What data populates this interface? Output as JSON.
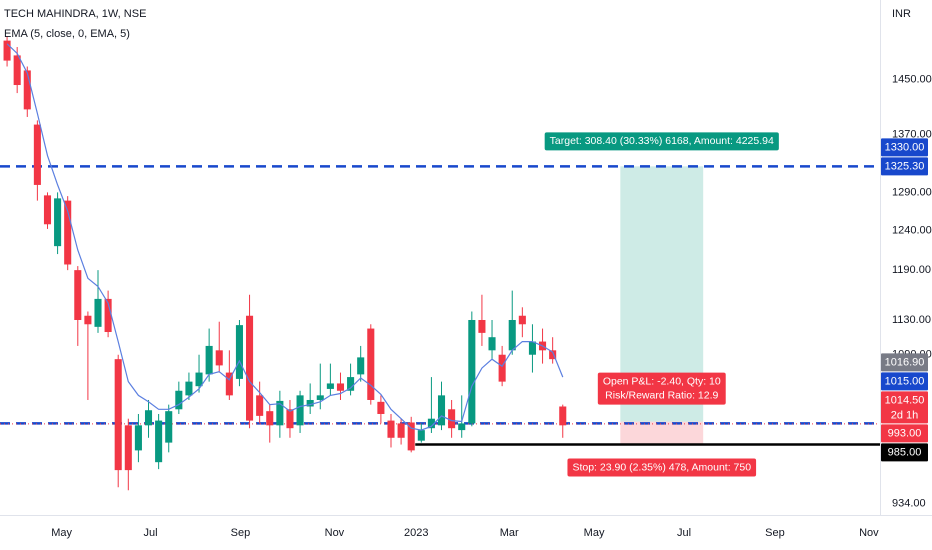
{
  "chart_data": {
    "type": "candlestick",
    "title": "TECH MAHINDRA, 1W, NSE",
    "currency": "INR",
    "log_scale": true,
    "up_color": "#089981",
    "down_color": "#f23645",
    "xlim": [
      -0.7,
      86.4
    ],
    "ylim": [
      923,
      1575
    ],
    "xticks": [
      {
        "value": 5.4,
        "label": "May"
      },
      {
        "value": 14.2,
        "label": "Jul"
      },
      {
        "value": 23.1,
        "label": "Sep"
      },
      {
        "value": 32.4,
        "label": "Nov"
      },
      {
        "value": 40.5,
        "label": "2023"
      },
      {
        "value": 49.7,
        "label": "Mar"
      },
      {
        "value": 58.1,
        "label": "May"
      },
      {
        "value": 67,
        "label": "Jul"
      },
      {
        "value": 76,
        "label": "Sep"
      },
      {
        "value": 85.3,
        "label": "Nov"
      }
    ],
    "yticks": [
      {
        "value": 1450,
        "label": "1450.00"
      },
      {
        "value": 1370,
        "label": "1370.00"
      },
      {
        "value": 1290,
        "label": "1290.00"
      },
      {
        "value": 1240,
        "label": "1240.00"
      },
      {
        "value": 1190,
        "label": "1190.00"
      },
      {
        "value": 1130,
        "label": "1130.00"
      },
      {
        "value": 1090,
        "label": "1090.00"
      },
      {
        "value": 934,
        "label": "934.00"
      }
    ],
    "open": [
      1510,
      1487,
      1464,
      1384,
      1286,
      1220,
      1279,
      1190,
      1135,
      1122,
      1155,
      1085,
      1013,
      987,
      1013,
      975,
      995,
      1030,
      1045,
      1055,
      1068,
      1095,
      1070,
      1063,
      1135,
      1045,
      1028,
      1013,
      1030,
      1013,
      1033,
      1040,
      1052,
      1058,
      1050,
      1068,
      1120,
      1038,
      1018,
      1015,
      1016,
      997,
      1010,
      1013,
      1030,
      1008,
      1015,
      1130,
      1095,
      1090,
      1095,
      1135,
      1090,
      1105,
      1095,
      1033
    ],
    "high": [
      1517,
      1500,
      1470,
      1390,
      1290,
      1290,
      1285,
      1195,
      1140,
      1190,
      1165,
      1090,
      1020,
      1025,
      1040,
      1025,
      1035,
      1060,
      1070,
      1090,
      1120,
      1128,
      1095,
      1130,
      1160,
      1060,
      1035,
      1050,
      1040,
      1050,
      1058,
      1080,
      1080,
      1070,
      1080,
      1100,
      1125,
      1045,
      1025,
      1020,
      1022,
      1015,
      1065,
      1060,
      1040,
      1045,
      1140,
      1160,
      1130,
      1100,
      1165,
      1145,
      1125,
      1120,
      1110,
      1035
    ],
    "low": [
      1470,
      1430,
      1395,
      1279,
      1242,
      1210,
      1190,
      1100,
      1040,
      1115,
      1110,
      950,
      947,
      975,
      1000,
      968,
      985,
      1025,
      1040,
      1048,
      1060,
      1070,
      1040,
      1055,
      1010,
      1015,
      995,
      1000,
      1000,
      1005,
      1025,
      1030,
      1045,
      1040,
      1045,
      1060,
      1035,
      1015,
      990,
      993,
      985,
      995,
      1005,
      1008,
      1000,
      1000,
      1012,
      1100,
      1085,
      1055,
      1090,
      1110,
      1070,
      1080,
      1080,
      1000
    ],
    "close": [
      1479,
      1442,
      1406,
      1300,
      1248,
      1282,
      1197,
      1130,
      1125,
      1155,
      1116,
      967,
      967,
      1013,
      1029,
      1018,
      1028,
      1050,
      1060,
      1070,
      1100,
      1078,
      1045,
      1124,
      1018,
      1023,
      1013,
      1039,
      1010,
      1045,
      1040,
      1045,
      1058,
      1050,
      1065,
      1087,
      1040,
      1025,
      1000,
      1000,
      987,
      1008,
      1020,
      1045,
      1010,
      1015,
      1130,
      1115,
      1110,
      1060,
      1130,
      1125,
      1105,
      1095,
      1085,
      1013
    ],
    "series": [
      {
        "name": "EMA (5, close, 0, EMA, 5)",
        "color": "#5b7fe0",
        "values": [
          1505,
          1490,
          1460,
          1400,
          1340,
          1300,
          1265,
          1215,
          1180,
          1170,
          1150,
          1105,
          1060,
          1045,
          1038,
          1030,
          1030,
          1035,
          1043,
          1052,
          1068,
          1071,
          1062,
          1083,
          1060,
          1048,
          1035,
          1036,
          1028,
          1033,
          1035,
          1038,
          1045,
          1047,
          1053,
          1064,
          1056,
          1046,
          1030,
          1020,
          1010,
          1008,
          1012,
          1023,
          1018,
          1017,
          1055,
          1075,
          1085,
          1077,
          1095,
          1105,
          1105,
          1100,
          1093,
          1065
        ]
      }
    ],
    "lines": [
      {
        "value": 1325.3,
        "color": "#1848cc",
        "style": "dashed"
      },
      {
        "value": 1015,
        "color": "#1848cc",
        "style": "dashed"
      },
      {
        "value": 1014.5,
        "color": "#f23645",
        "style": "dotted"
      },
      {
        "value": 993,
        "color": "#000000",
        "style": "solid",
        "x_start": 40.4
      }
    ],
    "position": {
      "entry": 1016.9,
      "target": 1325.3,
      "stop": 993,
      "x_range": [
        60.7,
        68.9
      ],
      "target_label": "Target: 308.40 (30.33%) 6168, Amount: 4225.94",
      "pnl_label": "Open P&L: -2.40, Qty: 10",
      "rr_label": "Risk/Reward Ratio: 12.9",
      "stop_label": "Stop: 23.90 (2.35%) 478, Amount: 750"
    },
    "price_tags": [
      {
        "value": 1330,
        "label": "1330.00",
        "color": "#1848cc"
      },
      {
        "value": 1325.3,
        "label": "1325.30",
        "color": "#1848cc"
      },
      {
        "value": 1016.9,
        "label": "1016.90",
        "color": "#787b86"
      },
      {
        "value": 1015,
        "label": "1015.00",
        "color": "#1848cc"
      },
      {
        "value": 1014.5,
        "label": "1014.50",
        "color": "#f23645",
        "note": "2d 1h"
      },
      {
        "value": 993,
        "label": "993.00",
        "color": "#f23645"
      },
      {
        "value": 985,
        "label": "985.00",
        "color": "#000000"
      }
    ]
  }
}
